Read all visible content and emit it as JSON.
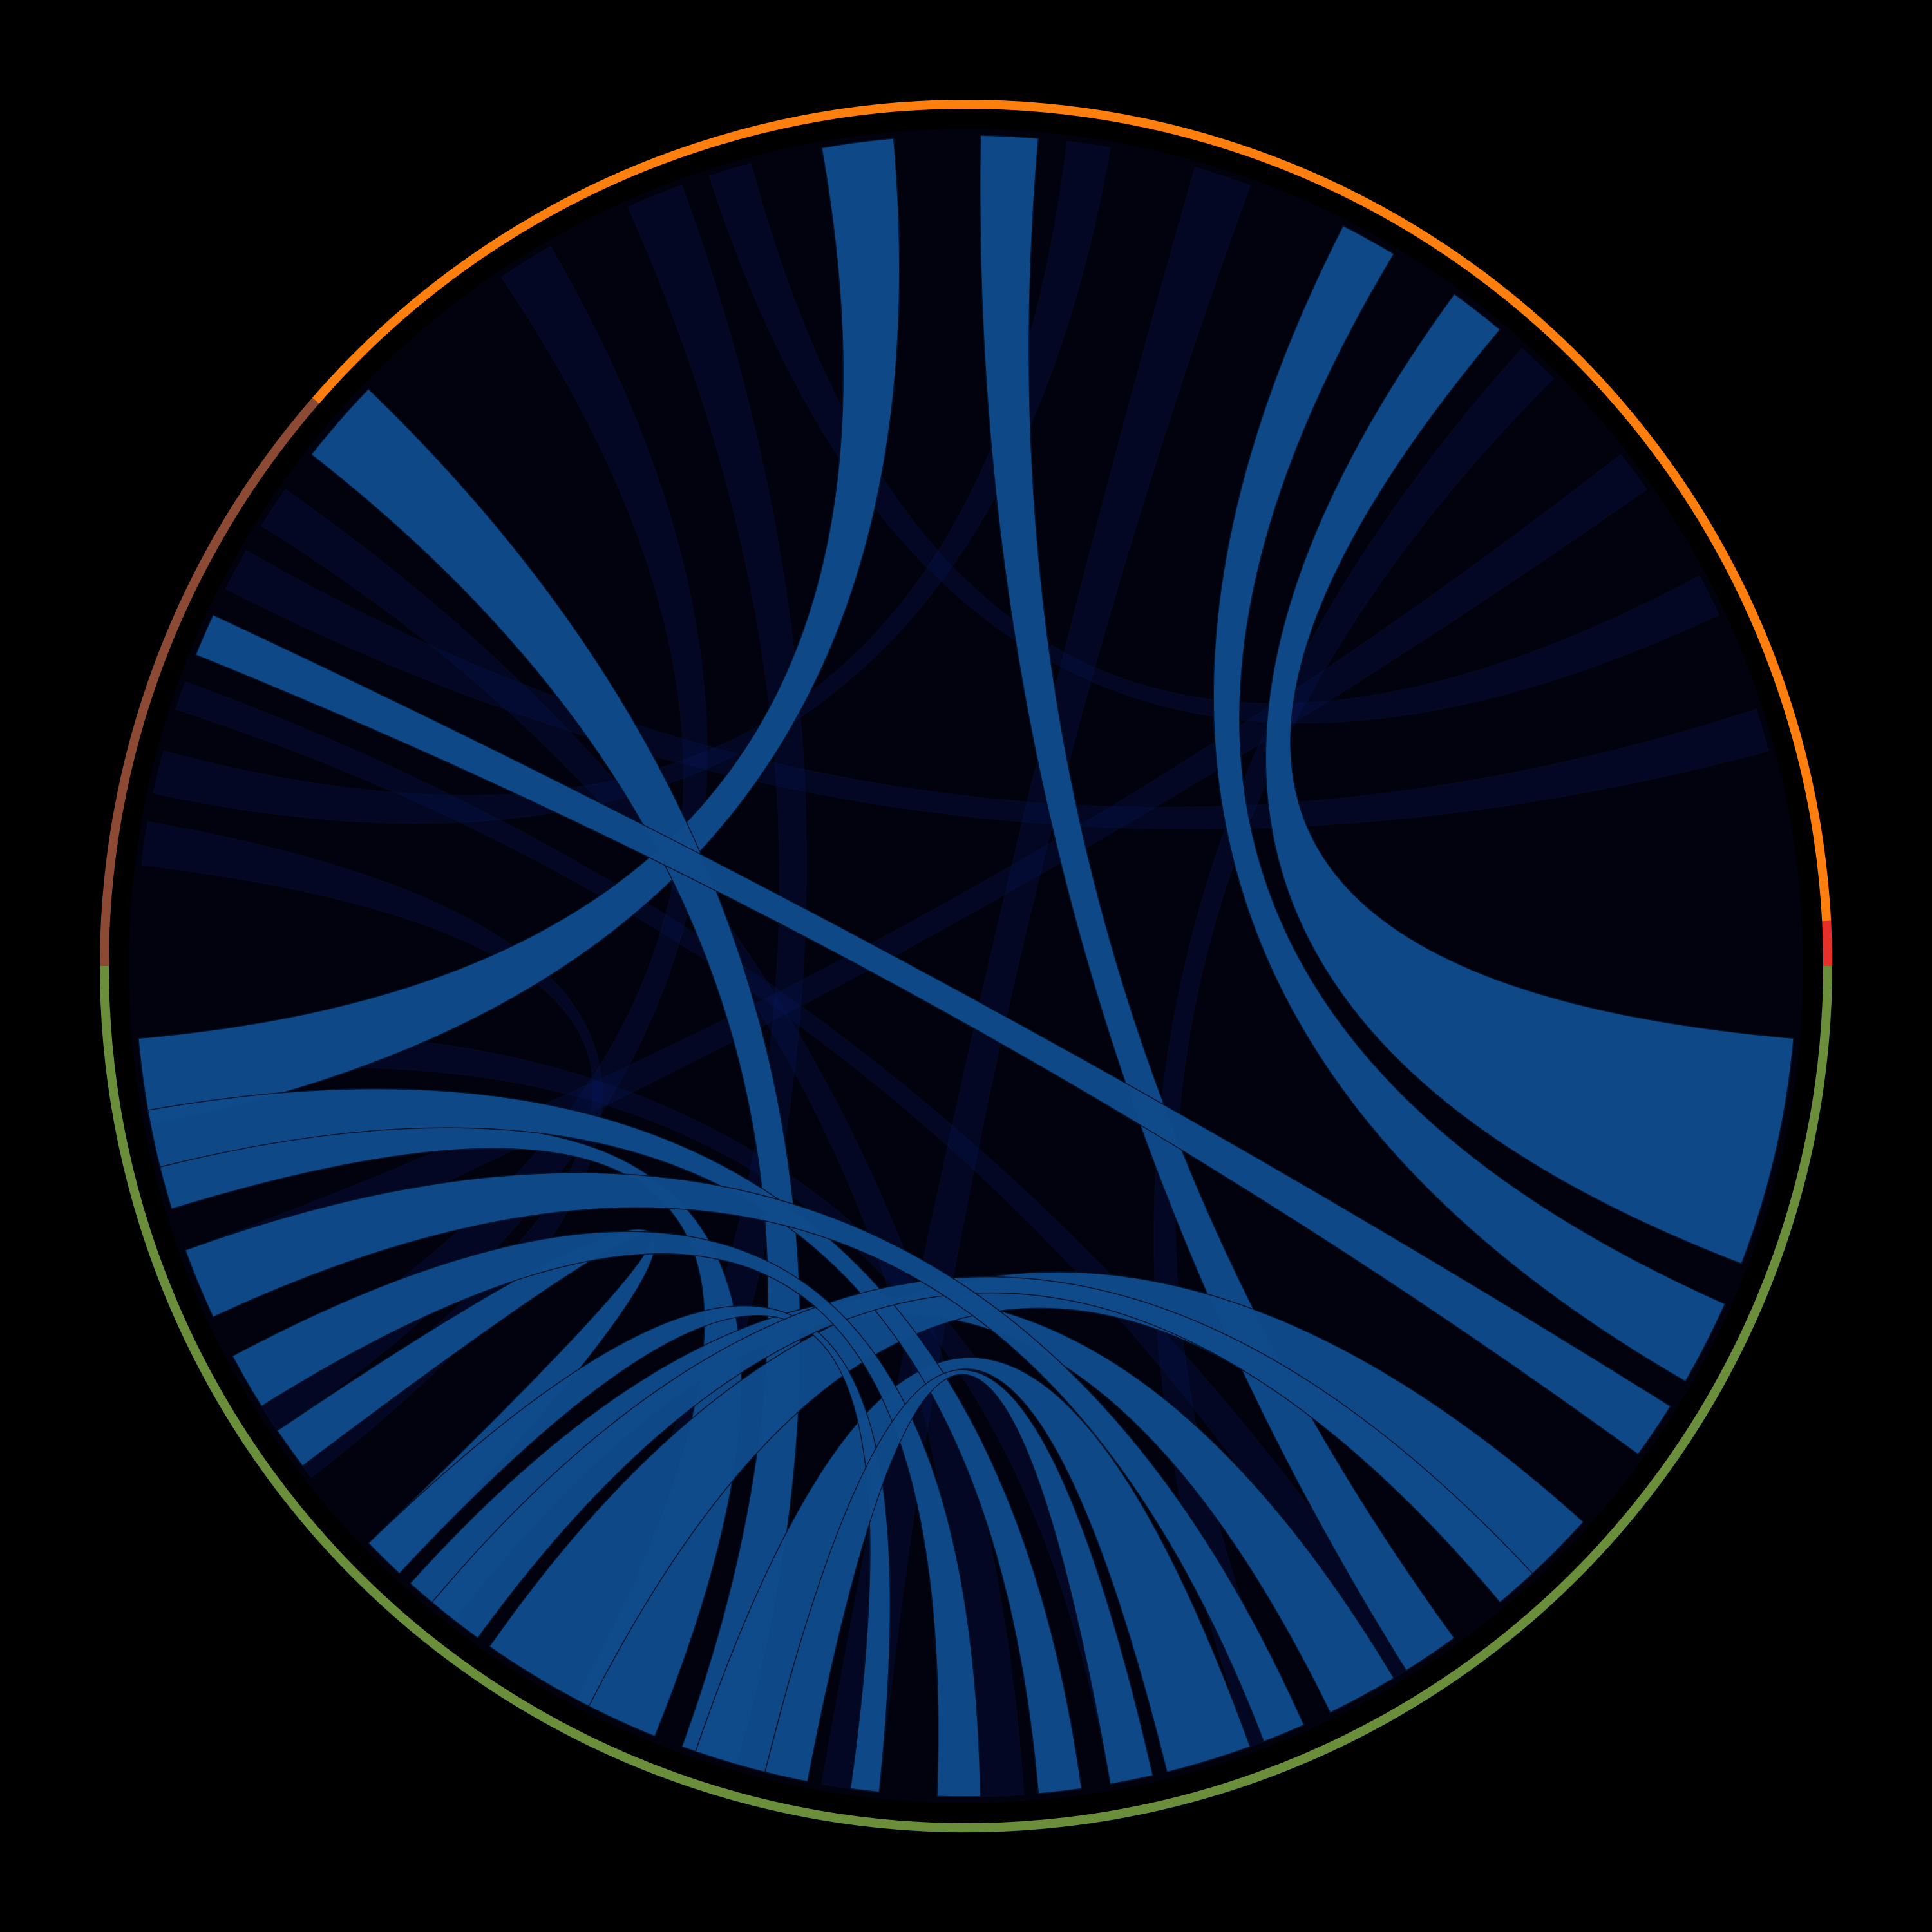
{
  "diagram": {
    "type": "chord",
    "background": "#000000",
    "disc_fill": "#02020f",
    "highlight_group": "blue",
    "highlight_fill": "#0f4a8a",
    "dim_fill": "#0a1a6e",
    "groups": [
      {
        "id": "blue",
        "color": "#1a5a9c",
        "start_deg": 180.0,
        "end_deg": 359.0
      },
      {
        "id": "red",
        "color": "#e8302a",
        "start_deg": 359.0,
        "end_deg": 363.0
      },
      {
        "id": "orange",
        "color": "#ff7f0e",
        "start_deg": 363.0,
        "end_deg": 499.0
      },
      {
        "id": "brown",
        "color": "#8c4a35",
        "start_deg": 499.0,
        "end_deg": 540.0
      },
      {
        "id": "green",
        "color": "#6b8e3a",
        "start_deg": 540.0,
        "end_deg": 540.0
      }
    ],
    "highlighted_chords": [
      {
        "source": "blue",
        "target": "orange",
        "s_deg": [
          339.0,
          355.0
        ],
        "t_deg": [
          410.0,
          414.0
        ]
      },
      {
        "source": "blue",
        "target": "orange",
        "s_deg": [
          330.0,
          336.0
        ],
        "t_deg": [
          419.0,
          423.0
        ]
      },
      {
        "source": "blue",
        "target": "orange",
        "s_deg": [
          302.0,
          306.0
        ],
        "t_deg": [
          445.0,
          449.0
        ]
      },
      {
        "source": "blue",
        "target": "orange",
        "s_deg": [
          185.0,
          191.0
        ],
        "t_deg": [
          455.0,
          460.0
        ]
      },
      {
        "source": "blue",
        "target": "brown",
        "s_deg": [
          250.0,
          254.0
        ],
        "t_deg": [
          496.0,
          502.0
        ]
      },
      {
        "source": "blue",
        "target": "brown",
        "s_deg": [
          324.0,
          328.0
        ],
        "t_deg": [
          515.0,
          518.0
        ]
      },
      {
        "source": "blue",
        "target": "green",
        "s_deg": [
          242.0,
          248.0
        ],
        "t_deg": [
          554.0,
          557.0
        ]
      },
      {
        "source": "blue",
        "target": "green",
        "s_deg": [
          296.0,
          301.0
        ],
        "t_deg": [
          588.0,
          592.0
        ]
      },
      {
        "source": "blue",
        "target": "green",
        "s_deg": [
          310.0,
          318.0
        ],
        "t_deg": [
          595.0,
          603.0
        ]
      },
      {
        "source": "blue",
        "target": "green",
        "s_deg": [
          284.0,
          290.0
        ],
        "t_deg": [
          611.0,
          616.0
        ]
      },
      {
        "source": "blue",
        "target": "green",
        "s_deg": [
          214.0,
          217.0
        ],
        "t_deg": [
          584.0,
          587.0
        ]
      },
      {
        "source": "blue",
        "target": "blue",
        "s_deg": [
          190.0,
          194.0
        ],
        "t_deg": [
          275.0,
          278.0
        ]
      },
      {
        "source": "blue",
        "target": "blue",
        "s_deg": [
          224.0,
          227.0
        ],
        "t_deg": [
          262.0,
          264.0
        ]
      },
      {
        "source": "blue",
        "target": "blue",
        "s_deg": [
          230.0,
          234.0
        ],
        "t_deg": [
          310.0,
          313.0
        ]
      },
      {
        "source": "blue",
        "target": "blue",
        "s_deg": [
          200.0,
          205.0
        ],
        "t_deg": [
          291.0,
          294.0
        ]
      },
      {
        "source": "blue",
        "target": "blue",
        "s_deg": [
          208.0,
          212.0
        ],
        "t_deg": [
          268.0,
          271.0
        ]
      },
      {
        "source": "blue",
        "target": "blue",
        "s_deg": [
          256.0,
          259.0
        ],
        "t_deg": [
          280.0,
          283.0
        ]
      }
    ],
    "dim_chords": [
      {
        "source": "orange",
        "target": "green",
        "s_deg": [
          430.0,
          434.0
        ],
        "t_deg": [
          620.0,
          624.0
        ]
      },
      {
        "source": "orange",
        "target": "green",
        "s_deg": [
          470.0,
          474.0
        ],
        "t_deg": [
          600.0,
          604.0
        ]
      },
      {
        "source": "orange",
        "target": "brown",
        "s_deg": [
          440.0,
          443.0
        ],
        "t_deg": [
          525.0,
          528.0
        ]
      },
      {
        "source": "orange",
        "target": "green",
        "s_deg": [
          480.0,
          484.0
        ],
        "t_deg": [
          570.0,
          574.0
        ]
      },
      {
        "source": "brown",
        "target": "green",
        "s_deg": [
          505.0,
          508.0
        ],
        "t_deg": [
          630.0,
          634.0
        ]
      },
      {
        "source": "brown",
        "target": "green",
        "s_deg": [
          530.0,
          533.0
        ],
        "t_deg": [
          575.0,
          578.0
        ]
      },
      {
        "source": "orange",
        "target": "green",
        "s_deg": [
          395.0,
          398.0
        ],
        "t_deg": [
          560.0,
          563.0
        ]
      },
      {
        "source": "orange",
        "target": "orange",
        "s_deg": [
          385.0,
          388.0
        ],
        "t_deg": [
          465.0,
          468.0
        ]
      },
      {
        "source": "green",
        "target": "green",
        "s_deg": [
          545.0,
          548.0
        ],
        "t_deg": [
          640.0,
          643.0
        ]
      },
      {
        "source": "orange",
        "target": "green",
        "s_deg": [
          405.0,
          408.0
        ],
        "t_deg": [
          650.0,
          653.0
        ]
      },
      {
        "source": "brown",
        "target": "green",
        "s_deg": [
          520.0,
          522.0
        ],
        "t_deg": [
          660.0,
          663.0
        ]
      },
      {
        "source": "orange",
        "target": "brown",
        "s_deg": [
          375.0,
          378.0
        ],
        "t_deg": [
          510.0,
          513.0
        ]
      }
    ]
  }
}
